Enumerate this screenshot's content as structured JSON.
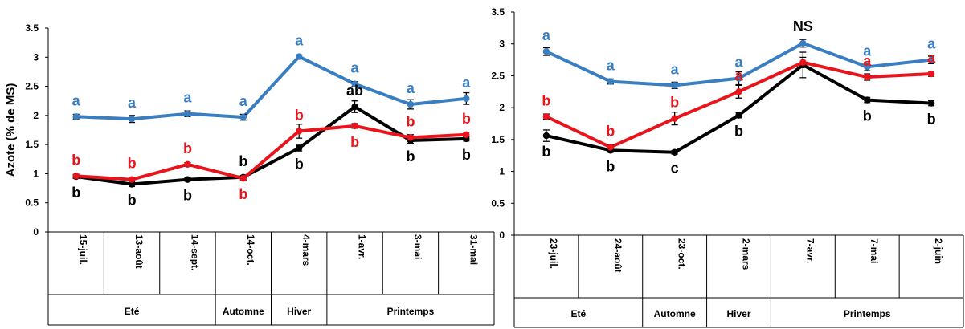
{
  "colors": {
    "blue": "#3A7EC2",
    "red": "#E8141B",
    "black": "#000000",
    "axis": "#000000"
  },
  "chart_data": [
    {
      "type": "line",
      "ylabel": "Azote (% de MS)",
      "ylim": [
        0,
        3.5
      ],
      "yticks": [
        "0",
        "0.5",
        "1",
        "1.5",
        "2",
        "2.5",
        "3",
        "3.5"
      ],
      "categories": [
        "15-juil.",
        "13-août",
        "14-sept.",
        "14-oct.",
        "4-mars",
        "1-avr.",
        "3-mai",
        "31-mai"
      ],
      "seasons": [
        {
          "label": "Eté",
          "span": 3
        },
        {
          "label": "Automne",
          "span": 1
        },
        {
          "label": "Hiver",
          "span": 1
        },
        {
          "label": "Printemps",
          "span": 3
        }
      ],
      "series": [
        {
          "color": "blue",
          "values": [
            1.98,
            1.94,
            2.03,
            1.97,
            3.01,
            2.54,
            2.19,
            2.29
          ],
          "errors": [
            0.04,
            0.06,
            0.05,
            0.05,
            0.03,
            0.04,
            0.08,
            0.1
          ],
          "letters": [
            "a",
            "a",
            "a",
            "a",
            "a",
            "a",
            "a",
            "a"
          ]
        },
        {
          "color": "black",
          "values": [
            0.95,
            0.82,
            0.9,
            0.94,
            1.44,
            2.15,
            1.57,
            1.6
          ],
          "errors": [
            0.03,
            0.04,
            0.03,
            0.03,
            0.05,
            0.1,
            0.05,
            0.04
          ],
          "letters": [
            "b",
            "b",
            "b",
            "b",
            "b",
            "ab",
            "b",
            "b"
          ]
        },
        {
          "color": "red",
          "values": [
            0.96,
            0.9,
            1.16,
            0.92,
            1.73,
            1.82,
            1.62,
            1.67
          ],
          "errors": [
            0.03,
            0.04,
            0.03,
            0.03,
            0.12,
            0.04,
            0.05,
            0.04
          ],
          "letters": [
            "b",
            "b",
            "b",
            "b",
            "b",
            "b",
            "b",
            "b"
          ]
        }
      ]
    },
    {
      "type": "line",
      "ylabel": "",
      "ylim": [
        0,
        3.5
      ],
      "yticks": [
        "0",
        "0.5",
        "1",
        "1.5",
        "2",
        "2.5",
        "3",
        "3.5"
      ],
      "categories": [
        "23-juil.",
        "24-août",
        "23-oct.",
        "2-mars",
        "7-avr.",
        "7-mai",
        "2-juin"
      ],
      "seasons": [
        {
          "label": "Eté",
          "span": 2
        },
        {
          "label": "Automne",
          "span": 1
        },
        {
          "label": "Hiver",
          "span": 1
        },
        {
          "label": "Printemps",
          "span": 3
        }
      ],
      "ns_label": "NS",
      "series": [
        {
          "color": "blue",
          "values": [
            2.88,
            2.41,
            2.35,
            2.46,
            3.01,
            2.64,
            2.75
          ],
          "errors": [
            0.06,
            0.04,
            0.05,
            0.1,
            0.06,
            0.06,
            0.06
          ],
          "letters": [
            "a",
            "a",
            "a",
            "a",
            "",
            "a",
            "a"
          ]
        },
        {
          "color": "black",
          "values": [
            1.56,
            1.33,
            1.3,
            1.88,
            2.67,
            2.12,
            2.07
          ],
          "errors": [
            0.09,
            0.03,
            0.03,
            0.04,
            0.2,
            0.04,
            0.04
          ],
          "letters": [
            "b",
            "b",
            "c",
            "b",
            "",
            "b",
            "b"
          ]
        },
        {
          "color": "red",
          "values": [
            1.86,
            1.38,
            1.83,
            2.25,
            2.71,
            2.48,
            2.53
          ],
          "errors": [
            0.04,
            0.04,
            0.1,
            0.1,
            0.08,
            0.05,
            0.04
          ],
          "letters": [
            "b",
            "b",
            "b",
            "a",
            "",
            "a",
            "a"
          ]
        }
      ]
    }
  ]
}
